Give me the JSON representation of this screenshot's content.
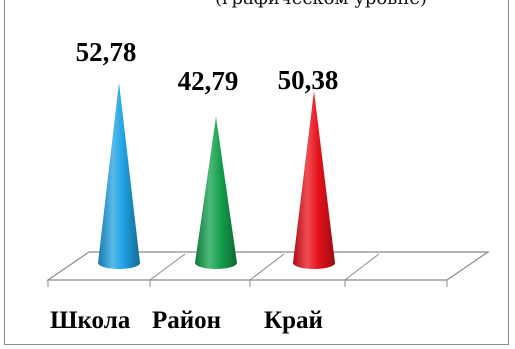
{
  "top_cut_text": "(графическом уровне)",
  "chart_data": {
    "type": "bar",
    "shape": "cone",
    "categories": [
      "Школа",
      "Район",
      "Край"
    ],
    "series": [
      {
        "values": [
          52.78,
          42.79,
          50.38
        ],
        "labels": [
          "52,78",
          "42,79",
          "50,38"
        ],
        "colors": [
          "#1fa3e3",
          "#14a04f",
          "#e8121a"
        ]
      }
    ],
    "ylim": [
      0,
      55
    ],
    "grid": false,
    "legend": "none"
  }
}
